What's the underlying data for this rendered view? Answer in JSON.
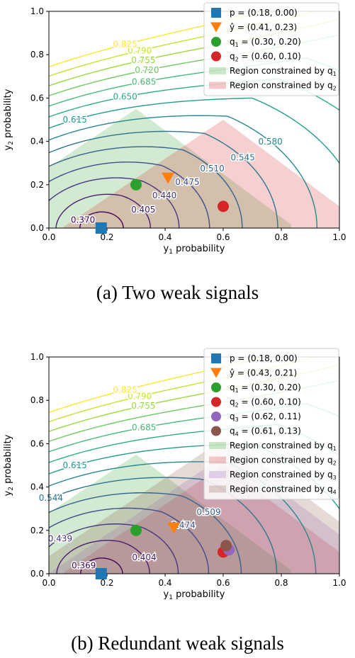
{
  "chart_data": [
    {
      "type": "contour",
      "caption": "(a) Two weak signals",
      "xlabel_prefix": "y",
      "xlabel_sub": "1",
      "xlabel_suffix": " probability",
      "ylabel_prefix": "y",
      "ylabel_sub": "2",
      "ylabel_suffix": " probability",
      "xlim": [
        0,
        1
      ],
      "ylim": [
        0,
        1
      ],
      "xticks": [
        "0.0",
        "0.2",
        "0.4",
        "0.6",
        "0.8",
        "1.0"
      ],
      "yticks": [
        "0.0",
        "0.2",
        "0.4",
        "0.6",
        "0.8",
        "1.0"
      ],
      "legend_position": "top-right",
      "contour_levels": [
        "0.370",
        "0.405",
        "0.440",
        "0.475",
        "0.510",
        "0.545",
        "0.580",
        "0.615",
        "0.650",
        "0.685",
        "0.720",
        "0.755",
        "0.790",
        "0.825"
      ],
      "points": [
        {
          "label_pre": "p = ",
          "label": "(0.18, 0.00)",
          "x": 0.18,
          "y": 0.0,
          "marker": "square",
          "color": "#1f77b4"
        },
        {
          "label_pre": "ŷ = ",
          "label": "(0.41, 0.23)",
          "x": 0.41,
          "y": 0.23,
          "marker": "triangle-down",
          "color": "#ff7f0e"
        },
        {
          "label_pre": "q",
          "sub": "1",
          "label_mid": " = ",
          "label": "(0.30, 0.20)",
          "x": 0.3,
          "y": 0.2,
          "marker": "circle",
          "color": "#2ca02c"
        },
        {
          "label_pre": "q",
          "sub": "2",
          "label_mid": " = ",
          "label": "(0.60, 0.10)",
          "x": 0.6,
          "y": 0.1,
          "marker": "circle",
          "color": "#d62728"
        }
      ],
      "regions": [
        {
          "label": "Region constrained by q",
          "sub": "1",
          "color": "#2ca02c",
          "q": [
            0.3,
            0.2
          ]
        },
        {
          "label": "Region constrained by q",
          "sub": "2",
          "color": "#d62728",
          "q": [
            0.6,
            0.1
          ]
        }
      ]
    },
    {
      "type": "contour",
      "caption": "(b) Redundant weak signals",
      "xlabel_prefix": "y",
      "xlabel_sub": "1",
      "xlabel_suffix": " probability",
      "ylabel_prefix": "y",
      "ylabel_sub": "2",
      "ylabel_suffix": " probability",
      "xlim": [
        0,
        1
      ],
      "ylim": [
        0,
        1
      ],
      "xticks": [
        "0.0",
        "0.2",
        "0.4",
        "0.6",
        "0.8",
        "1.0"
      ],
      "yticks": [
        "0.0",
        "0.2",
        "0.4",
        "0.6",
        "0.8",
        "1.0"
      ],
      "legend_position": "top-right",
      "contour_levels": [
        "0.369",
        "0.404",
        "0.439",
        "0.474",
        "0.509",
        "0.544",
        "0.579",
        "0.615",
        "",
        "0.685",
        "",
        "0.755",
        "0.790",
        "0.825"
      ],
      "points": [
        {
          "label_pre": "p = ",
          "label": "(0.18, 0.00)",
          "x": 0.18,
          "y": 0.0,
          "marker": "square",
          "color": "#1f77b4"
        },
        {
          "label_pre": "ŷ = ",
          "label": "(0.43, 0.21)",
          "x": 0.43,
          "y": 0.21,
          "marker": "triangle-down",
          "color": "#ff7f0e"
        },
        {
          "label_pre": "q",
          "sub": "1",
          "label_mid": " = ",
          "label": "(0.30, 0.20)",
          "x": 0.3,
          "y": 0.2,
          "marker": "circle",
          "color": "#2ca02c"
        },
        {
          "label_pre": "q",
          "sub": "2",
          "label_mid": " = ",
          "label": "(0.60, 0.10)",
          "x": 0.6,
          "y": 0.1,
          "marker": "circle",
          "color": "#d62728"
        },
        {
          "label_pre": "q",
          "sub": "3",
          "label_mid": " = ",
          "label": "(0.62, 0.11)",
          "x": 0.62,
          "y": 0.11,
          "marker": "circle",
          "color": "#9467bd"
        },
        {
          "label_pre": "q",
          "sub": "4",
          "label_mid": " = ",
          "label": "(0.61, 0.13)",
          "x": 0.61,
          "y": 0.13,
          "marker": "circle",
          "color": "#8c564b"
        }
      ],
      "regions": [
        {
          "label": "Region constrained by q",
          "sub": "1",
          "color": "#2ca02c",
          "q": [
            0.3,
            0.2
          ]
        },
        {
          "label": "Region constrained by q",
          "sub": "2",
          "color": "#d62728",
          "q": [
            0.6,
            0.1
          ]
        },
        {
          "label": "Region constrained by q",
          "sub": "3",
          "color": "#9467bd",
          "q": [
            0.62,
            0.11
          ]
        },
        {
          "label": "Region constrained by q",
          "sub": "4",
          "color": "#8c564b",
          "q": [
            0.61,
            0.13
          ]
        }
      ]
    }
  ]
}
